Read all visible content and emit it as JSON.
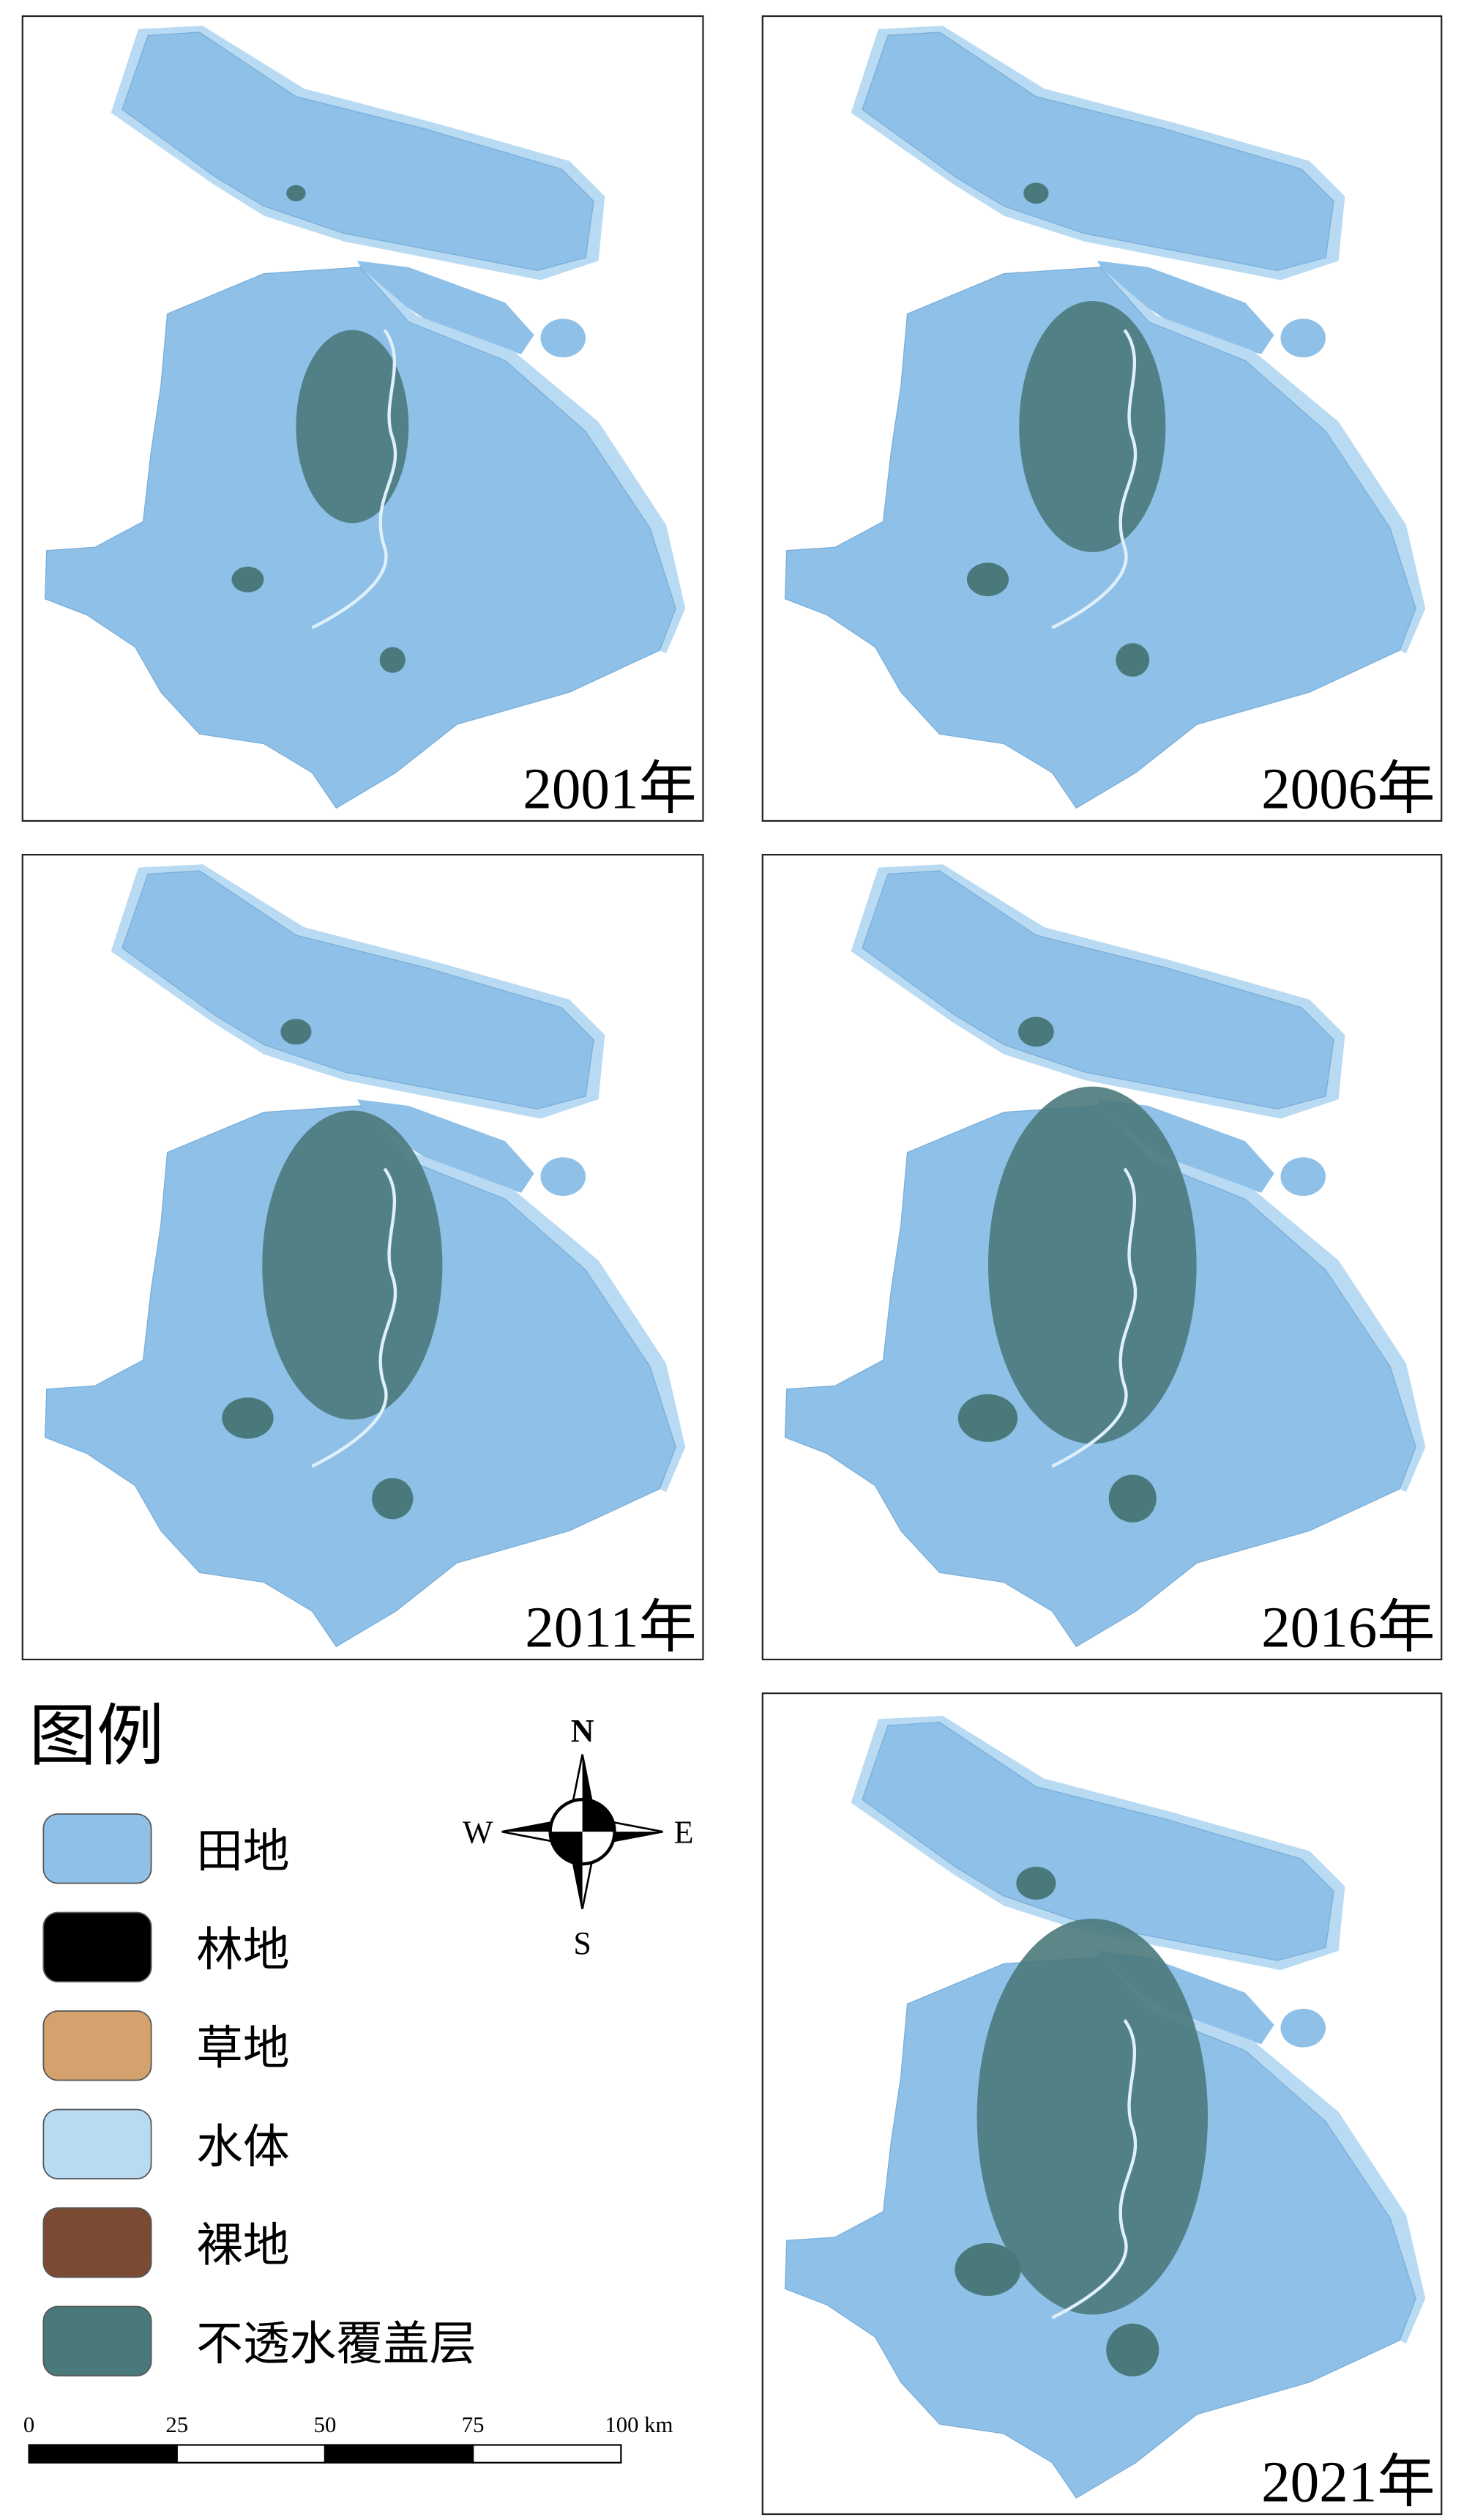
{
  "panels": [
    {
      "label": "2001年"
    },
    {
      "label": "2006年"
    },
    {
      "label": "2011年"
    },
    {
      "label": "2016年"
    },
    {
      "label": "2021年"
    }
  ],
  "legend": {
    "title": "图例",
    "items": [
      {
        "label": "田地",
        "color": "#8fc0e8"
      },
      {
        "label": "林地",
        "color": "#000000"
      },
      {
        "label": "草地",
        "color": "#d4a26f"
      },
      {
        "label": "水体",
        "color": "#b8daf2"
      },
      {
        "label": "裸地",
        "color": "#7a4a32"
      },
      {
        "label": "不透水覆盖层",
        "color": "#4a797b"
      }
    ]
  },
  "compass": {
    "north": "N",
    "south": "S",
    "east": "E",
    "west": "W"
  },
  "scale_bar": {
    "labels": [
      "0",
      "25",
      "50",
      "75",
      "100 km"
    ]
  }
}
